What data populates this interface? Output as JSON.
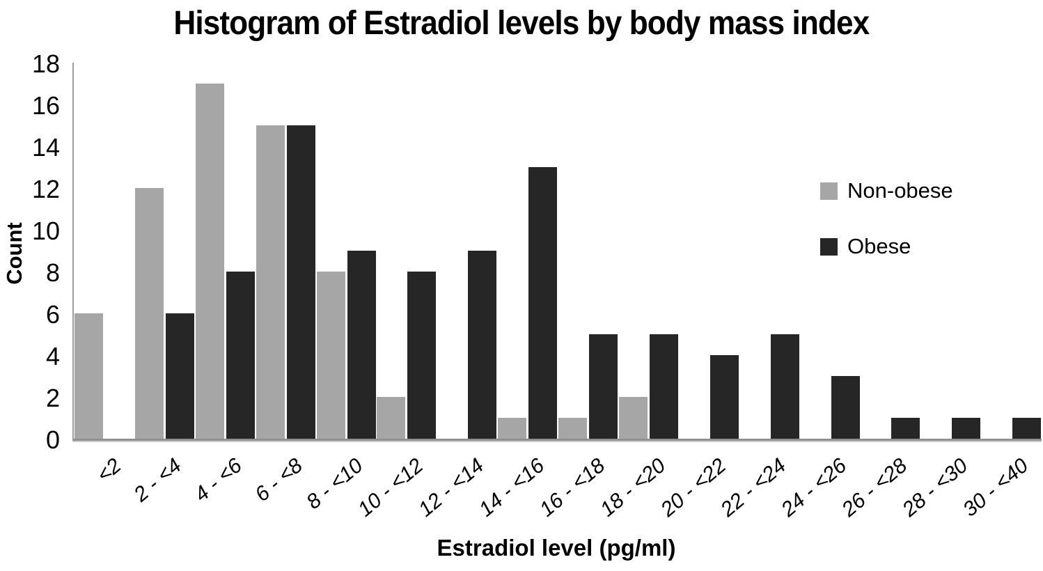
{
  "chart_data": {
    "type": "bar",
    "title": "Histogram of Estradiol levels by body mass index",
    "xlabel": "Estradiol level (pg/ml)",
    "ylabel": "Count",
    "ylim": [
      0,
      18
    ],
    "ytick_step": 2,
    "grid": false,
    "legend_position": "right",
    "categories": [
      "<2",
      "2 - <4",
      "4 - <6",
      "6 - <8",
      "8 - <10",
      "10 - <12",
      "12 - <14",
      "14 - <16",
      "16 - <18",
      "18 - <20",
      "20 - <22",
      "22 - <24",
      "24 - <26",
      "26 - <28",
      "28 - <30",
      "30 - <40"
    ],
    "series": [
      {
        "name": "Non-obese",
        "color": "#a6a6a6",
        "values": [
          6,
          12,
          17,
          15,
          8,
          2,
          0,
          1,
          1,
          2,
          0,
          0,
          0,
          0,
          0,
          0
        ]
      },
      {
        "name": "Obese",
        "color": "#262626",
        "values": [
          0,
          6,
          8,
          15,
          9,
          8,
          9,
          13,
          5,
          5,
          4,
          5,
          3,
          1,
          1,
          1
        ]
      }
    ],
    "axis_color": "#8f8f8f"
  }
}
